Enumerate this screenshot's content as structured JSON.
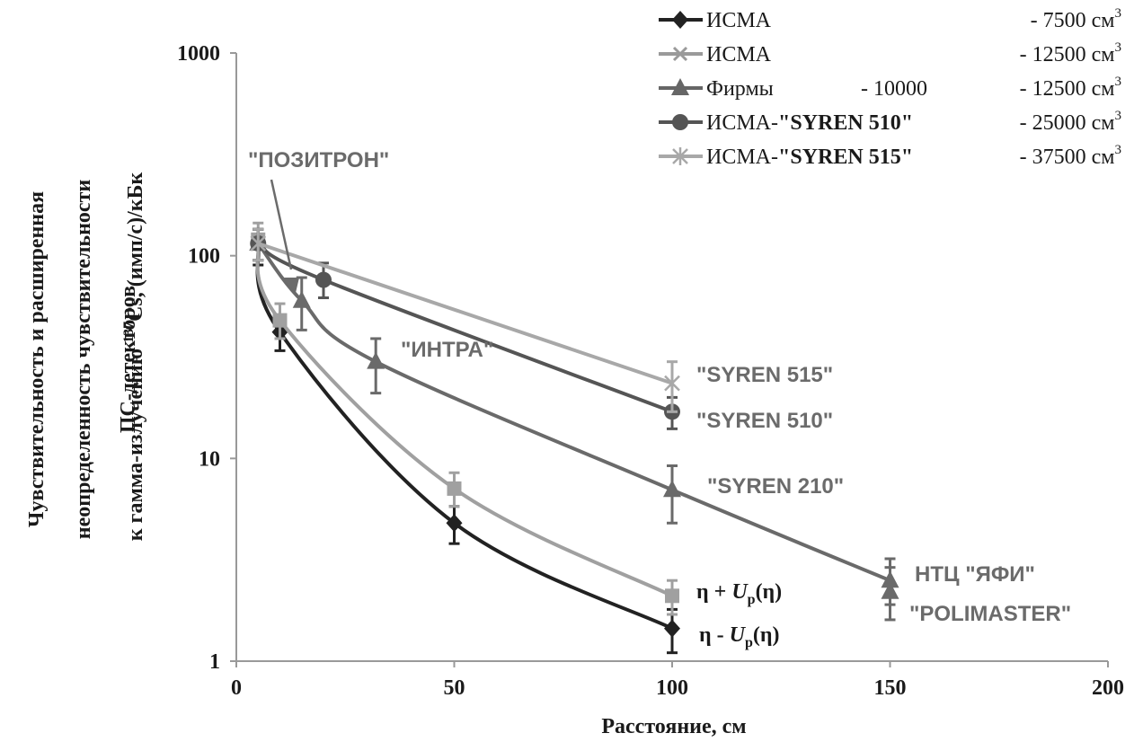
{
  "chart_data": {
    "type": "line",
    "y_scale": "log",
    "xlim": [
      0,
      200
    ],
    "ylim": [
      1,
      1000
    ],
    "x_ticks": [
      "0",
      "50",
      "100",
      "150",
      "200"
    ],
    "x_tick_values": [
      0,
      50,
      100,
      150,
      200
    ],
    "y_ticks": [
      "1",
      "10",
      "100",
      "1000"
    ],
    "y_tick_values": [
      1,
      10,
      100,
      1000
    ],
    "xlabel": "Расстояние, см",
    "ylabel_lines": [
      "Чувствительность и расширенная",
      "неопределенность чувствительности",
      "ПС-детекторов",
      "к гамма-излучению ",
      "137",
      "Cs, (имп/с)/кБк"
    ],
    "grid": false,
    "legend_position": "top-right",
    "legend": [
      {
        "marker": "diamond",
        "color": "#222222",
        "name": "ИСМА",
        "name_bold": "",
        "mid": "",
        "volume": "- 7500",
        "unit": "см",
        "sup": "3"
      },
      {
        "marker": "x",
        "color": "#9a9a9a",
        "name": "ИСМА",
        "name_bold": "",
        "mid": "",
        "volume": "- 12500",
        "unit": "см",
        "sup": "3"
      },
      {
        "marker": "triangle",
        "color": "#666666",
        "name": "Фирмы",
        "name_bold": "",
        "mid": "- 10000",
        "volume": "- 12500",
        "unit": "см",
        "sup": "3"
      },
      {
        "marker": "circle",
        "color": "#555555",
        "name": "ИСМА-",
        "name_bold": "\"SYREN 510\"",
        "mid": "",
        "volume": "- 25000",
        "unit": "см",
        "sup": "3"
      },
      {
        "marker": "star",
        "color": "#a8a8a8",
        "name": "ИСМА-",
        "name_bold": "\"SYREN 515\"",
        "mid": "",
        "volume": "- 37500",
        "unit": "см",
        "sup": "3"
      }
    ],
    "series": [
      {
        "id": "isma-7500",
        "marker": "diamond",
        "color": "#222222",
        "points": [
          {
            "x": 5,
            "y": 115,
            "lo": 90,
            "hi": 135
          },
          {
            "x": 10,
            "y": 42,
            "lo": 34,
            "hi": 50
          },
          {
            "x": 50,
            "y": 4.8,
            "lo": 3.8,
            "hi": 5.8
          },
          {
            "x": 100,
            "y": 1.45,
            "lo": 1.1,
            "hi": 1.8
          }
        ]
      },
      {
        "id": "isma-12500",
        "marker": "square",
        "color": "#a0a0a0",
        "points": [
          {
            "x": 5,
            "y": 120,
            "lo": 95,
            "hi": 145
          },
          {
            "x": 10,
            "y": 48,
            "lo": 39,
            "hi": 58
          },
          {
            "x": 50,
            "y": 7.1,
            "lo": 5.8,
            "hi": 8.5
          },
          {
            "x": 100,
            "y": 2.1,
            "lo": 1.7,
            "hi": 2.5
          }
        ]
      },
      {
        "id": "firms",
        "marker": "triangle",
        "color": "#6a6a6a",
        "points": [
          {
            "x": 5,
            "y": 115,
            "lo": 95,
            "hi": 135
          },
          {
            "x": 15,
            "y": 60,
            "lo": 43,
            "hi": 78
          },
          {
            "x": 32,
            "y": 30,
            "lo": 21,
            "hi": 39
          },
          {
            "x": 100,
            "y": 7,
            "lo": 4.8,
            "hi": 9.2
          },
          {
            "x": 150,
            "y": 2.5,
            "lo": 1.9,
            "hi": 3.2
          }
        ]
      },
      {
        "id": "firms-polimaster",
        "marker": "triangle",
        "color": "#6a6a6a",
        "points": [
          {
            "x": 150,
            "y": 2.2,
            "lo": 1.6,
            "hi": 2.9
          }
        ]
      },
      {
        "id": "syren-510",
        "marker": "circle",
        "color": "#555555",
        "points": [
          {
            "x": 5,
            "y": 115,
            "lo": 95,
            "hi": 135
          },
          {
            "x": 20,
            "y": 76,
            "lo": 62,
            "hi": 92
          },
          {
            "x": 100,
            "y": 17,
            "lo": 14,
            "hi": 20
          }
        ]
      },
      {
        "id": "syren-515",
        "marker": "star",
        "color": "#a8a8a8",
        "points": [
          {
            "x": 5,
            "y": 115,
            "lo": 95,
            "hi": 135
          },
          {
            "x": 100,
            "y": 23.5,
            "lo": 17,
            "hi": 30
          }
        ]
      }
    ],
    "annotations": {
      "positron": "\"ПОЗИТРОН\"",
      "intra": "\"ИНТРА\"",
      "syren515": "\"SYREN 515\"",
      "syren510": "\"SYREN 510\"",
      "syren210": "\"SYREN 210\"",
      "yafi": "НТЦ \"ЯФИ\"",
      "polimaster": "\"POLIMASTER\"",
      "eta_plus_pre": "η + ",
      "eta_minus_pre": "η - ",
      "u_letter": "U",
      "u_sub": "p",
      "eta_post": "(η)"
    }
  }
}
